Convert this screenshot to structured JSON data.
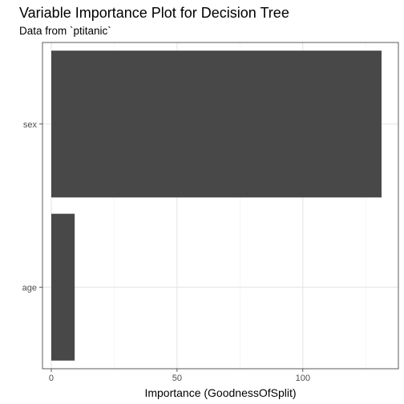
{
  "chart_data": {
    "type": "bar",
    "orientation": "horizontal",
    "title": "Variable Importance Plot for Decision Tree",
    "subtitle": "Data from `ptitanic`",
    "xlabel": "Importance (GoodnessOfSplit)",
    "ylabel": "",
    "categories": [
      "sex",
      "age"
    ],
    "values": [
      131.3,
      9.3
    ],
    "xlim": [
      -3.5,
      138
    ],
    "xticks": [
      0,
      50,
      100
    ],
    "grid": true,
    "bar_color": "#484848",
    "legend": "none"
  }
}
